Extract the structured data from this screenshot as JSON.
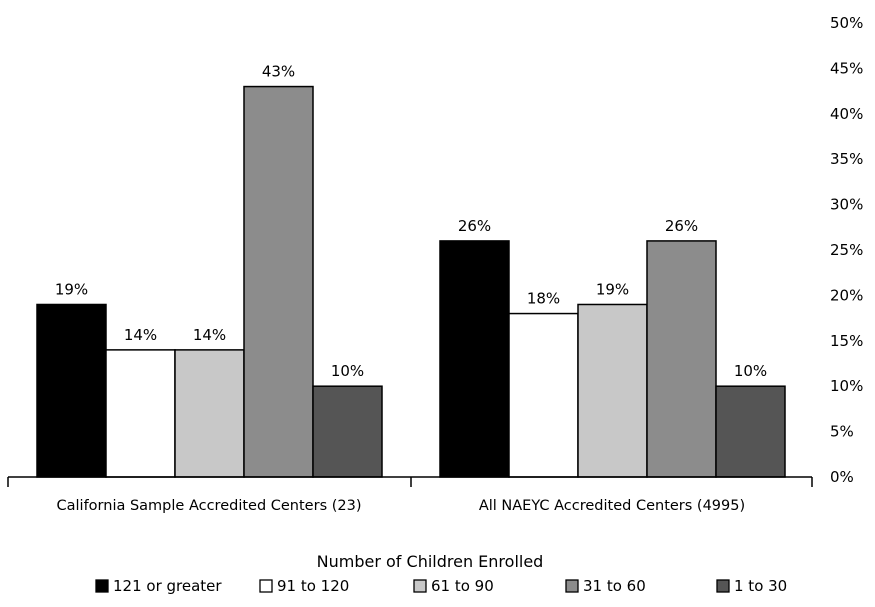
{
  "chart_data": {
    "type": "bar",
    "categories": [
      "California Sample Accredited Centers (23)",
      "All NAEYC Accredited Centers (4995)"
    ],
    "series": [
      {
        "name": "121 or greater",
        "values": [
          19,
          26
        ],
        "labels": [
          "19%",
          "26%"
        ],
        "color": "#000000"
      },
      {
        "name": "91 to 120",
        "values": [
          14,
          18
        ],
        "labels": [
          "14%",
          "18%"
        ],
        "color": "#ffffff"
      },
      {
        "name": "61 to 90",
        "values": [
          14,
          19
        ],
        "labels": [
          "14%",
          "19%"
        ],
        "color": "#c8c8c8"
      },
      {
        "name": "31 to 60",
        "values": [
          43,
          26
        ],
        "labels": [
          "43%",
          "26%"
        ],
        "color": "#8c8c8c"
      },
      {
        "name": "1 to 30",
        "values": [
          10,
          10
        ],
        "labels": [
          "10%",
          "10%"
        ],
        "color": "#555555"
      }
    ],
    "yticks": [
      "0%",
      "5%",
      "10%",
      "15%",
      "20%",
      "25%",
      "30%",
      "35%",
      "40%",
      "45%",
      "50%"
    ],
    "ylim": [
      0,
      50
    ],
    "y_axis_side": "right",
    "xlabel": "Number of Children Enrolled",
    "ylabel": "",
    "title": "",
    "grid": false,
    "legend_placement": "bottom"
  }
}
